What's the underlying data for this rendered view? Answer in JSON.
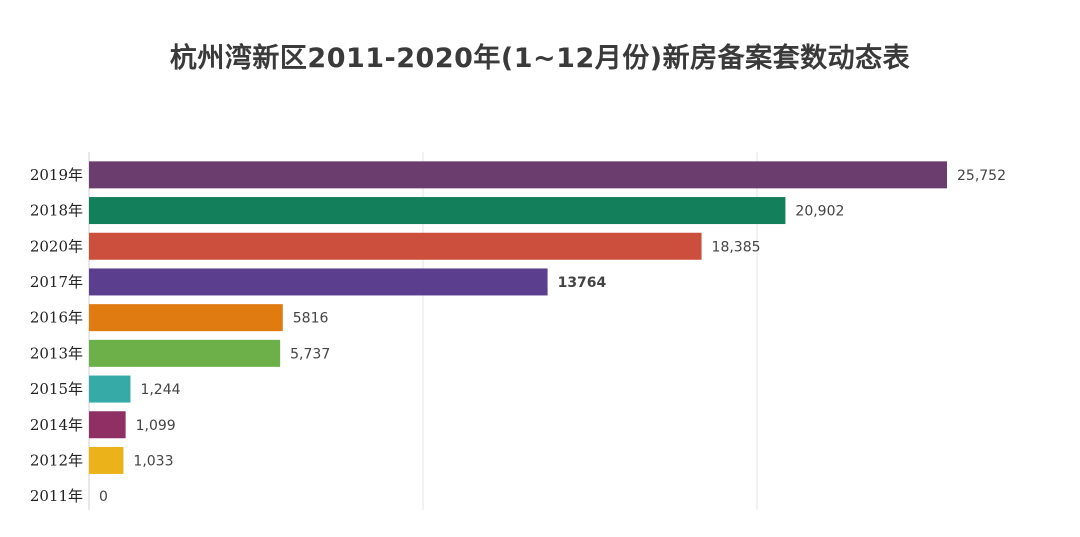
{
  "chart_data": {
    "type": "bar",
    "orientation": "horizontal",
    "title": "杭州湾新区2011-2020年(1~12月份)新房备案套数动态表",
    "categories": [
      "2019年",
      "2018年",
      "2020年",
      "2017年",
      "2016年",
      "2013年",
      "2015年",
      "2014年",
      "2012年",
      "2011年"
    ],
    "values": [
      25752,
      20902,
      18385,
      13764,
      5816,
      5737,
      1244,
      1099,
      1033,
      0
    ],
    "value_labels": [
      "25,752",
      "20,902",
      "18,385",
      "13764",
      "5816",
      "5,737",
      "1,244",
      "1,099",
      "1,033",
      "0"
    ],
    "bar_colors": [
      "#6b3d6e",
      "#137f5b",
      "#cc4e3c",
      "#5b3e8e",
      "#e07b12",
      "#6db04a",
      "#35aaa6",
      "#8f3065",
      "#ebb21a",
      "#cccccc"
    ],
    "xlim": [
      0,
      25752
    ],
    "grid": true,
    "legend": "none"
  }
}
